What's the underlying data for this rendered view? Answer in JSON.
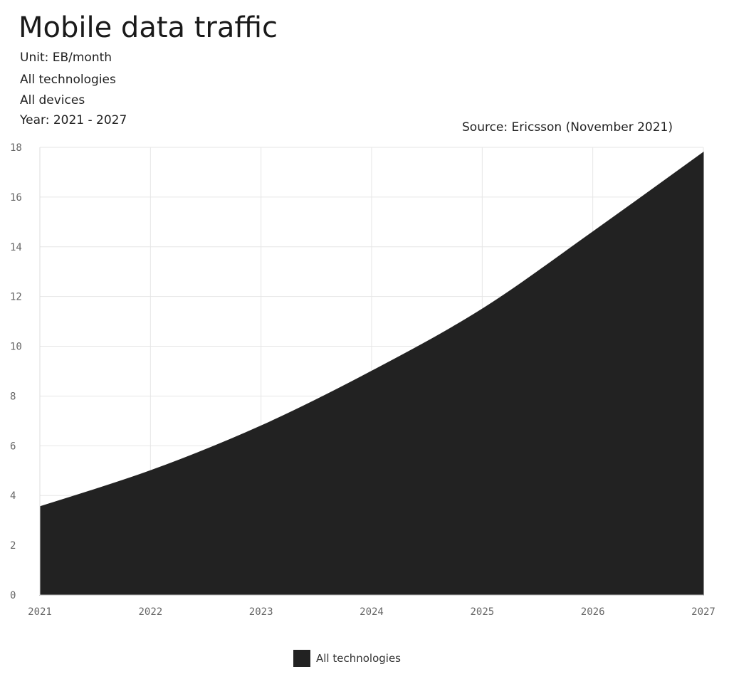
{
  "header": {
    "title": "Mobile data traffic",
    "lines": [
      "Unit: EB/month",
      "All technologies",
      "All devices",
      "Year: 2021 - 2027"
    ],
    "source": "Source: Ericsson (November 2021)"
  },
  "chart_data": {
    "type": "area",
    "title": "Mobile data traffic",
    "xlabel": "",
    "ylabel": "",
    "x": [
      2021,
      2022,
      2023,
      2024,
      2025,
      2026,
      2027
    ],
    "x_tick_labels": [
      "2021",
      "2022",
      "2023",
      "2024",
      "2025",
      "2026",
      "2027"
    ],
    "y_ticks": [
      0,
      2,
      4,
      6,
      8,
      10,
      12,
      14,
      16,
      18
    ],
    "ylim": [
      0,
      18
    ],
    "xlim": [
      2021,
      2027
    ],
    "grid": true,
    "legend_position": "bottom-center",
    "series": [
      {
        "name": "All technologies",
        "color": "#222222",
        "values": [
          3.55,
          5.0,
          6.8,
          9.0,
          11.5,
          14.6,
          17.8
        ]
      }
    ]
  },
  "legend": {
    "items": [
      {
        "label": "All technologies",
        "color": "#222222"
      }
    ]
  }
}
